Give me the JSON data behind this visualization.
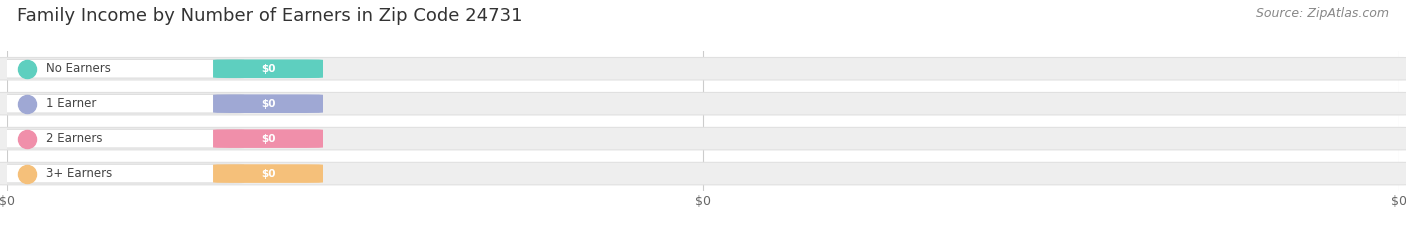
{
  "title": "Family Income by Number of Earners in Zip Code 24731",
  "source": "Source: ZipAtlas.com",
  "categories": [
    "No Earners",
    "1 Earner",
    "2 Earners",
    "3+ Earners"
  ],
  "values": [
    0,
    0,
    0,
    0
  ],
  "bar_colors": [
    "#5ecfbf",
    "#9fa8d4",
    "#f08faa",
    "#f5c07a"
  ],
  "value_labels": [
    "$0",
    "$0",
    "$0",
    "$0"
  ],
  "background_color": "#ffffff",
  "bar_bg_color": "#eeeeee",
  "title_fontsize": 13,
  "source_fontsize": 9,
  "tick_label": "$0",
  "xlim_max": 1.0,
  "x_tick_positions": [
    0.0,
    0.5,
    1.0
  ]
}
